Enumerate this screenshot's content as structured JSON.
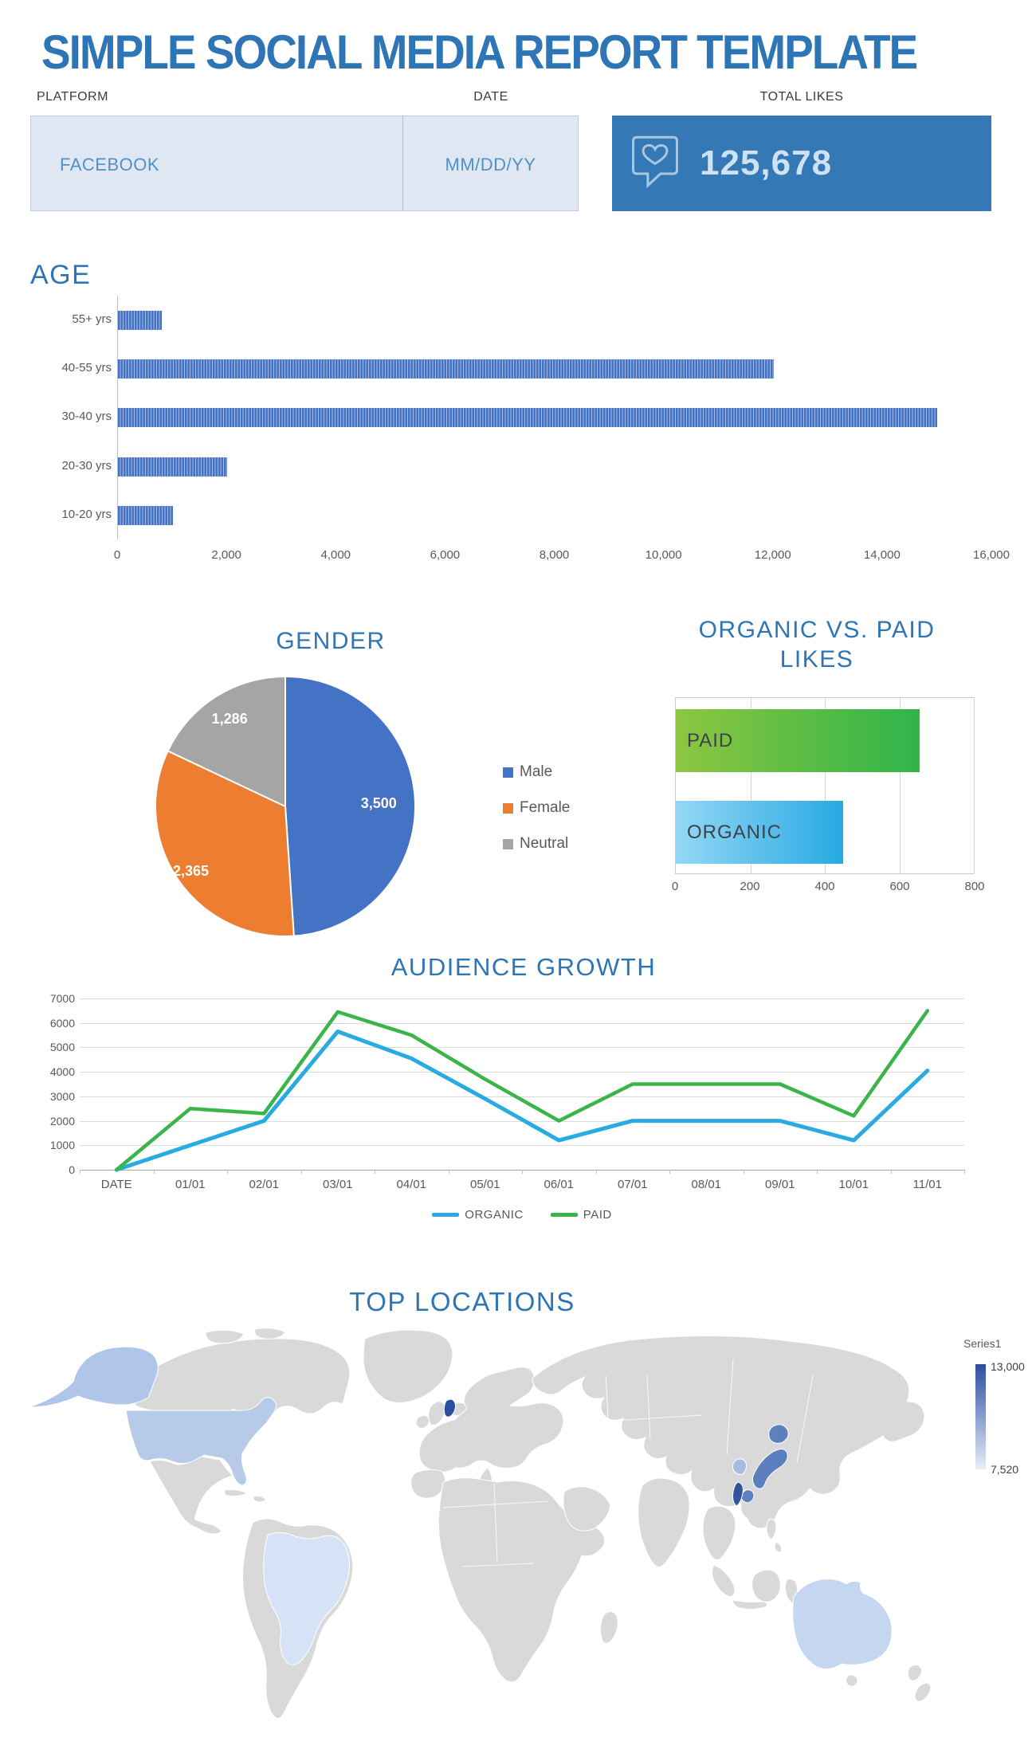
{
  "page": {
    "title": "SIMPLE SOCIAL MEDIA REPORT TEMPLATE"
  },
  "header": {
    "platform_label": "PLATFORM",
    "platform_value": "FACEBOOK",
    "date_label": "DATE",
    "date_value": "MM/DD/YY",
    "total_likes_label": "TOTAL LIKES",
    "total_likes_value": "125,678",
    "icon": "heart-speech-bubble-icon",
    "colors": {
      "box_bg": "#3478B6",
      "cell_bg": "#DFE8F2",
      "cell_text": "#5090C9",
      "accent": "#2E75B6"
    }
  },
  "chart_data": [
    {
      "id": "age",
      "type": "bar",
      "orientation": "horizontal",
      "title": "AGE",
      "categories": [
        "55+ yrs",
        "40-55 yrs",
        "30-40 yrs",
        "20-30 yrs",
        "10-20 yrs"
      ],
      "values": [
        800,
        12000,
        15000,
        2000,
        1000
      ],
      "xlim": [
        0,
        16000
      ],
      "x_ticks": [
        "0",
        "2,000",
        "4,000",
        "6,000",
        "8,000",
        "10,000",
        "12,000",
        "14,000",
        "16,000"
      ],
      "bar_color": "#4472C4",
      "bar_pattern": "vertical-pinstripe",
      "grid": false
    },
    {
      "id": "gender",
      "type": "pie",
      "title": "GENDER",
      "labels": [
        "Male",
        "Female",
        "Neutral"
      ],
      "values": [
        3500,
        2365,
        1286
      ],
      "value_labels": [
        "3,500",
        "2,365",
        "1,286"
      ],
      "colors": [
        "#4472C4",
        "#ED7D31",
        "#A5A5A5"
      ],
      "legend_position": "right",
      "start_angle_deg": -90,
      "direction": "clockwise"
    },
    {
      "id": "organic_vs_paid",
      "type": "bar",
      "orientation": "horizontal",
      "title": "ORGANIC VS. PAID LIKES",
      "title_lines": [
        "ORGANIC VS. PAID",
        "LIKES"
      ],
      "categories": [
        "PAID",
        "ORGANIC"
      ],
      "values": [
        655,
        450
      ],
      "xlim": [
        0,
        800
      ],
      "x_ticks": [
        "0",
        "200",
        "400",
        "600",
        "800"
      ],
      "bar_gradients": {
        "PAID": [
          "#8DC63F",
          "#2FB44B"
        ],
        "ORGANIC": [
          "#93D7F6",
          "#27A9E1"
        ]
      },
      "grid": true
    },
    {
      "id": "audience_growth",
      "type": "line",
      "title": "AUDIENCE GROWTH",
      "x": [
        "DATE",
        "01/01",
        "02/01",
        "03/01",
        "04/01",
        "05/01",
        "06/01",
        "07/01",
        "08/01",
        "09/01",
        "10/01",
        "11/01"
      ],
      "series": [
        {
          "name": "ORGANIC",
          "color": "#29ABE2",
          "values": [
            0,
            1000,
            2000,
            5650,
            4550,
            2900,
            1200,
            2000,
            2000,
            2000,
            1200,
            4050
          ]
        },
        {
          "name": "PAID",
          "color": "#3BB54A",
          "values": [
            0,
            2500,
            2300,
            6450,
            5500,
            3700,
            2000,
            3500,
            3500,
            3500,
            2200,
            6500
          ]
        }
      ],
      "ylim": [
        0,
        7000
      ],
      "y_ticks": [
        "7000",
        "6000",
        "5000",
        "4000",
        "3000",
        "2000",
        "1000",
        "0"
      ],
      "grid": true,
      "legend_position": "bottom"
    },
    {
      "id": "top_locations",
      "type": "choropleth_map",
      "title": "TOP LOCATIONS",
      "legend": {
        "series_label": "Series1",
        "max_label": "13,000",
        "min_label": "7,520",
        "max_value": 13000,
        "min_value": 7520,
        "gradient": [
          "#2B4EA2",
          "#E9EEF8"
        ]
      },
      "base_land_color": "#D9D9D9",
      "regions": [
        {
          "key": "united-states",
          "name": "United States",
          "color": "#B7CBE9"
        },
        {
          "key": "alaska",
          "name": "Alaska (US)",
          "color": "#AFC6E8"
        },
        {
          "key": "brazil",
          "name": "Brazil",
          "color": "#D6E2F5"
        },
        {
          "key": "australia",
          "name": "Australia",
          "color": "#C4D6F0"
        },
        {
          "key": "japan",
          "name": "Japan",
          "color": "#5C80BE"
        },
        {
          "key": "south-korea",
          "name": "South Korea",
          "color": "#A3BCE0"
        },
        {
          "key": "taiwan",
          "name": "Taiwan",
          "color": "#33549C"
        },
        {
          "key": "netherlands",
          "name": "Netherlands",
          "color": "#2B4EA2"
        }
      ]
    }
  ]
}
